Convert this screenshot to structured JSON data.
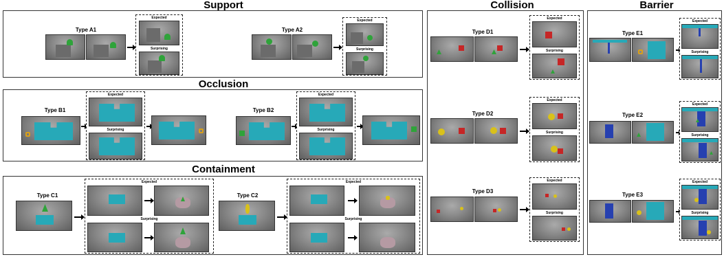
{
  "sections": {
    "support": "Support",
    "occlusion": "Occlusion",
    "containment": "Containment",
    "collision": "Collision",
    "barrier": "Barrier"
  },
  "types": {
    "a1": "Type A1",
    "a2": "Type A2",
    "b1": "Type B1",
    "b2": "Type B2",
    "c1": "Type C1",
    "c2": "Type C2",
    "d1": "Type D1",
    "d2": "Type D2",
    "d3": "Type D3",
    "e1": "Type E1",
    "e2": "Type E2",
    "e3": "Type E3"
  },
  "outcomes": {
    "expected": "Expected",
    "surprising": "Surprising"
  },
  "colors": {
    "wall": "#27a9b8",
    "block": "#6b6b6b",
    "green": "#2fa33a",
    "red": "#c62626",
    "yellow": "#d9c11a",
    "blue": "#2640b0",
    "container": "#b59aa3"
  }
}
